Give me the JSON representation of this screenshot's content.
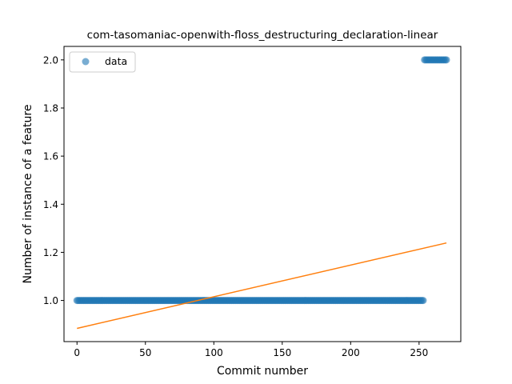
{
  "chart_data": {
    "type": "scatter",
    "title": "com-tasomaniac-openwith-floss_destructuring_declaration-linear",
    "xlabel": "Commit number",
    "ylabel": "Number of instance of a feature",
    "xlim": [
      -9.5,
      280.5
    ],
    "ylim": [
      0.829,
      2.056
    ],
    "xticks": [
      0,
      50,
      100,
      150,
      200,
      250
    ],
    "yticks": [
      1.0,
      1.2,
      1.4,
      1.6,
      1.8,
      2.0
    ],
    "xtick_labels": [
      "0",
      "50",
      "100",
      "150",
      "200",
      "250"
    ],
    "ytick_labels": [
      "1.0",
      "1.2",
      "1.4",
      "1.6",
      "1.8",
      "2.0"
    ],
    "legend": {
      "position": "top-left",
      "entries": [
        "data"
      ]
    },
    "grid": false,
    "series": [
      {
        "name": "data",
        "kind": "scatter",
        "color": "#1f77b4",
        "segments": [
          {
            "x_start": 0,
            "x_end": 253,
            "y": 1.0
          },
          {
            "x_start": 254,
            "x_end": 270,
            "y": 2.0
          }
        ]
      },
      {
        "kind": "line",
        "color": "#ff7f0e",
        "x": [
          0,
          270
        ],
        "y": [
          0.884,
          1.239
        ]
      }
    ]
  }
}
